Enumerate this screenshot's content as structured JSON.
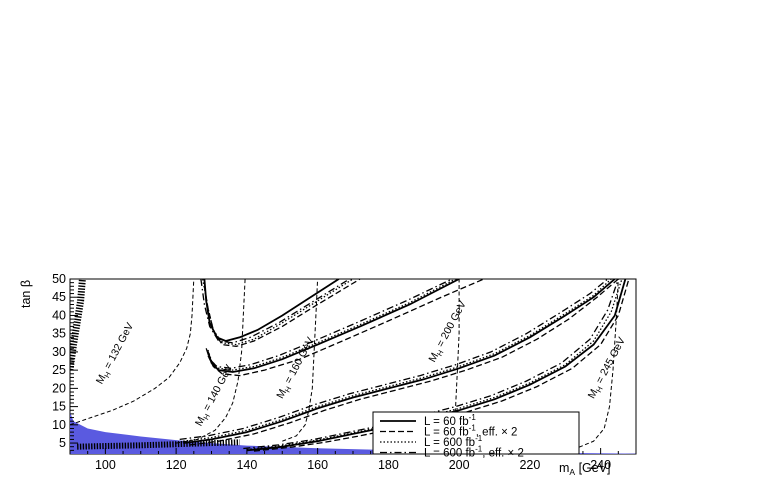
{
  "chart_data": {
    "type": "line",
    "xlabel": "m",
    "xlabel_sub": "A",
    "xlabel_unit": " [GeV]",
    "ylabel": "tan β",
    "xlim": [
      90,
      250
    ],
    "ylim": [
      2,
      50
    ],
    "xticks": [
      100,
      120,
      140,
      160,
      180,
      200,
      220,
      240
    ],
    "yticks": [
      5,
      10,
      15,
      20,
      25,
      30,
      35,
      40,
      45,
      50
    ],
    "grid": false,
    "legend_position": "bottom-right",
    "legend": [
      {
        "text": "L = 60 fb",
        "sup": "-1",
        "suffix": "",
        "style": "solid"
      },
      {
        "text": "L = 60 fb",
        "sup": "-1",
        "suffix": ", eff. × 2",
        "style": "dashed"
      },
      {
        "text": "L = 600 fb",
        "sup": "-1",
        "suffix": "",
        "style": "dotted"
      },
      {
        "text": "L = 600 fb",
        "sup": "-1",
        "suffix": ", eff. × 2",
        "style": "dashdot"
      }
    ],
    "mass_contours": [
      {
        "label": "M",
        "sub": "H",
        "value": " = 132 GeV",
        "label_x": 99,
        "label_y": 21,
        "points": [
          [
            90,
            10
          ],
          [
            96,
            12
          ],
          [
            102,
            14
          ],
          [
            108,
            16.5
          ],
          [
            114,
            20
          ],
          [
            118,
            23
          ],
          [
            121,
            27
          ],
          [
            123,
            31
          ],
          [
            124,
            35
          ],
          [
            124.5,
            40
          ],
          [
            125,
            50
          ]
        ]
      },
      {
        "label": "M",
        "sub": "H",
        "value": " = 140 GeV",
        "label_x": 127,
        "label_y": 9.5,
        "points": [
          [
            120,
            5
          ],
          [
            126,
            6
          ],
          [
            131,
            8.5
          ],
          [
            134,
            12
          ],
          [
            136,
            16
          ],
          [
            137.5,
            22
          ],
          [
            138.5,
            30
          ],
          [
            139,
            40
          ],
          [
            139.5,
            50
          ]
        ]
      },
      {
        "label": "M",
        "sub": "H",
        "value": " = 160 GeV",
        "label_x": 150,
        "label_y": 17,
        "points": [
          [
            150,
            5.5
          ],
          [
            154,
            7
          ],
          [
            156.5,
            10
          ],
          [
            157.5,
            14
          ],
          [
            158.5,
            20
          ],
          [
            159,
            30
          ],
          [
            159.5,
            40
          ],
          [
            160,
            50
          ]
        ]
      },
      {
        "label": "M",
        "sub": "H",
        "value": " = 200 GeV",
        "label_x": 193,
        "label_y": 27,
        "points": [
          [
            195,
            4
          ],
          [
            197.5,
            6
          ],
          [
            198.5,
            10
          ],
          [
            199,
            15
          ],
          [
            199.5,
            25
          ],
          [
            200,
            35
          ],
          [
            200,
            50
          ]
        ]
      },
      {
        "label": "M",
        "sub": "H",
        "value": " = 245 GeV",
        "label_x": 238,
        "label_y": 17,
        "points": [
          [
            223,
            2.5
          ],
          [
            233,
            3.5
          ],
          [
            238,
            5.5
          ],
          [
            241,
            9
          ],
          [
            242.5,
            15
          ],
          [
            243.5,
            25
          ],
          [
            244.5,
            40
          ],
          [
            245,
            50
          ]
        ]
      }
    ],
    "series": [
      {
        "style": "solid",
        "points": [
          [
            128,
            50
          ],
          [
            128.5,
            44
          ],
          [
            129.5,
            38
          ],
          [
            131.5,
            34
          ],
          [
            134,
            33
          ],
          [
            138,
            34
          ],
          [
            143,
            36
          ],
          [
            150,
            40
          ],
          [
            158,
            45
          ],
          [
            166,
            50
          ]
        ]
      },
      {
        "style": "dashed",
        "points": [
          [
            128,
            48
          ],
          [
            129,
            42
          ],
          [
            130.5,
            36
          ],
          [
            133,
            32
          ],
          [
            137,
            31.5
          ],
          [
            142,
            33
          ],
          [
            150,
            37
          ],
          [
            160,
            43
          ],
          [
            172,
            50
          ]
        ]
      },
      {
        "style": "dotted",
        "points": [
          [
            127.5,
            50
          ],
          [
            129,
            42
          ],
          [
            130.5,
            36
          ],
          [
            133,
            32.5
          ],
          [
            137,
            32
          ],
          [
            142,
            33.5
          ],
          [
            150,
            38
          ],
          [
            160,
            44
          ],
          [
            170,
            50
          ]
        ]
      },
      {
        "style": "dashdot",
        "points": [
          [
            127,
            50
          ],
          [
            128,
            43
          ],
          [
            129.5,
            37
          ],
          [
            132,
            33
          ],
          [
            136,
            32.5
          ],
          [
            141,
            34
          ],
          [
            149,
            38
          ],
          [
            159,
            44
          ],
          [
            169,
            50
          ]
        ]
      },
      {
        "style": "solid",
        "points": [
          [
            129,
            30
          ],
          [
            130,
            27
          ],
          [
            132,
            25
          ],
          [
            136,
            24.5
          ],
          [
            142,
            25.5
          ],
          [
            150,
            28
          ],
          [
            160,
            32
          ],
          [
            172,
            37
          ],
          [
            186,
            43
          ],
          [
            200,
            50
          ]
        ]
      },
      {
        "style": "dashed",
        "points": [
          [
            129,
            29
          ],
          [
            130.5,
            26
          ],
          [
            133,
            24
          ],
          [
            138,
            23.5
          ],
          [
            145,
            25
          ],
          [
            155,
            28
          ],
          [
            167,
            33
          ],
          [
            180,
            38.5
          ],
          [
            195,
            45
          ],
          [
            207,
            50
          ]
        ]
      },
      {
        "style": "dotted",
        "points": [
          [
            129,
            30.5
          ],
          [
            130,
            27.5
          ],
          [
            132,
            25.5
          ],
          [
            136,
            25
          ],
          [
            142,
            26
          ],
          [
            150,
            28.5
          ],
          [
            160,
            32.5
          ],
          [
            172,
            37.5
          ],
          [
            186,
            43.5
          ],
          [
            199,
            50
          ]
        ]
      },
      {
        "style": "dashdot",
        "points": [
          [
            128.5,
            31
          ],
          [
            129.5,
            28
          ],
          [
            131.5,
            26
          ],
          [
            135.5,
            25.5
          ],
          [
            141,
            26.5
          ],
          [
            149,
            29
          ],
          [
            159,
            33
          ],
          [
            171,
            38
          ],
          [
            185,
            44
          ],
          [
            198,
            50
          ]
        ]
      },
      {
        "style": "solid",
        "points": [
          [
            122,
            5
          ],
          [
            130,
            6
          ],
          [
            140,
            8
          ],
          [
            150,
            11
          ],
          [
            160,
            14.5
          ],
          [
            170,
            17.5
          ],
          [
            180,
            20
          ],
          [
            190,
            22.5
          ],
          [
            200,
            25.5
          ],
          [
            210,
            29
          ],
          [
            220,
            34
          ],
          [
            230,
            40
          ],
          [
            238,
            45
          ],
          [
            244,
            50
          ]
        ]
      },
      {
        "style": "dashed",
        "points": [
          [
            124,
            4.5
          ],
          [
            132,
            5.5
          ],
          [
            142,
            7.5
          ],
          [
            152,
            10.5
          ],
          [
            162,
            14
          ],
          [
            172,
            17
          ],
          [
            182,
            19.5
          ],
          [
            192,
            22
          ],
          [
            202,
            25
          ],
          [
            212,
            28.5
          ],
          [
            222,
            33.5
          ],
          [
            231,
            39
          ],
          [
            239,
            45
          ],
          [
            245,
            50
          ]
        ]
      },
      {
        "style": "dotted",
        "points": [
          [
            122,
            5.5
          ],
          [
            130,
            6.5
          ],
          [
            140,
            8.5
          ],
          [
            150,
            11.5
          ],
          [
            160,
            15
          ],
          [
            170,
            18
          ],
          [
            180,
            20.5
          ],
          [
            190,
            23
          ],
          [
            200,
            26
          ],
          [
            210,
            29.5
          ],
          [
            220,
            34.5
          ],
          [
            230,
            40.5
          ],
          [
            238,
            45.5
          ],
          [
            243,
            50
          ]
        ]
      },
      {
        "style": "dashdot",
        "points": [
          [
            121,
            6
          ],
          [
            129,
            7
          ],
          [
            139,
            9
          ],
          [
            149,
            12
          ],
          [
            159,
            15.5
          ],
          [
            169,
            18.5
          ],
          [
            179,
            21
          ],
          [
            189,
            23.5
          ],
          [
            199,
            26.5
          ],
          [
            209,
            30
          ],
          [
            219,
            35
          ],
          [
            229,
            41
          ],
          [
            237,
            46
          ],
          [
            242,
            50
          ]
        ]
      },
      {
        "style": "solid",
        "points": [
          [
            140,
            3
          ],
          [
            150,
            4
          ],
          [
            160,
            5.5
          ],
          [
            170,
            7.5
          ],
          [
            180,
            9.5
          ],
          [
            190,
            11.5
          ],
          [
            200,
            14
          ],
          [
            210,
            17
          ],
          [
            220,
            21
          ],
          [
            230,
            26
          ],
          [
            238,
            32
          ],
          [
            244,
            40
          ],
          [
            247,
            50
          ]
        ]
      },
      {
        "style": "dashed",
        "points": [
          [
            142,
            2.8
          ],
          [
            152,
            3.8
          ],
          [
            162,
            5.2
          ],
          [
            172,
            7
          ],
          [
            182,
            9
          ],
          [
            192,
            11
          ],
          [
            202,
            13.5
          ],
          [
            212,
            16.5
          ],
          [
            222,
            20.5
          ],
          [
            232,
            25.5
          ],
          [
            240,
            32
          ],
          [
            245,
            40
          ],
          [
            248,
            50
          ]
        ]
      },
      {
        "style": "dotted",
        "points": [
          [
            140,
            3.2
          ],
          [
            150,
            4.3
          ],
          [
            160,
            5.8
          ],
          [
            170,
            7.8
          ],
          [
            180,
            9.8
          ],
          [
            190,
            12
          ],
          [
            200,
            14.5
          ],
          [
            210,
            17.5
          ],
          [
            220,
            21.5
          ],
          [
            230,
            26.5
          ],
          [
            238,
            33
          ],
          [
            243,
            41
          ],
          [
            246,
            50
          ]
        ]
      },
      {
        "style": "dashdot",
        "points": [
          [
            139,
            3.5
          ],
          [
            149,
            4.5
          ],
          [
            159,
            6
          ],
          [
            169,
            8
          ],
          [
            179,
            10
          ],
          [
            189,
            12.5
          ],
          [
            199,
            15
          ],
          [
            209,
            18
          ],
          [
            219,
            22
          ],
          [
            229,
            27
          ],
          [
            237,
            33.5
          ],
          [
            242,
            41.5
          ],
          [
            245,
            50
          ]
        ]
      }
    ],
    "steep_boundary": [
      [
        90,
        25
      ],
      [
        91,
        32
      ],
      [
        92,
        38
      ],
      [
        93,
        44
      ],
      [
        93.5,
        50
      ]
    ],
    "excluded_region": [
      [
        90,
        2
      ],
      [
        90,
        13.5
      ],
      [
        91,
        11
      ],
      [
        95,
        9
      ],
      [
        100,
        8
      ],
      [
        110,
        6.8
      ],
      [
        120,
        5.8
      ],
      [
        130,
        5
      ],
      [
        140,
        4.3
      ],
      [
        160,
        3.6
      ],
      [
        180,
        3.1
      ],
      [
        200,
        2.7
      ],
      [
        230,
        2.3
      ],
      [
        250,
        2.1
      ],
      [
        250,
        2
      ]
    ],
    "excluded_color": "#5a5ae0",
    "low_band": [
      [
        92,
        4
      ],
      [
        100,
        4.2
      ],
      [
        110,
        4.4
      ],
      [
        120,
        4.7
      ],
      [
        130,
        5
      ],
      [
        138,
        5.2
      ]
    ]
  }
}
